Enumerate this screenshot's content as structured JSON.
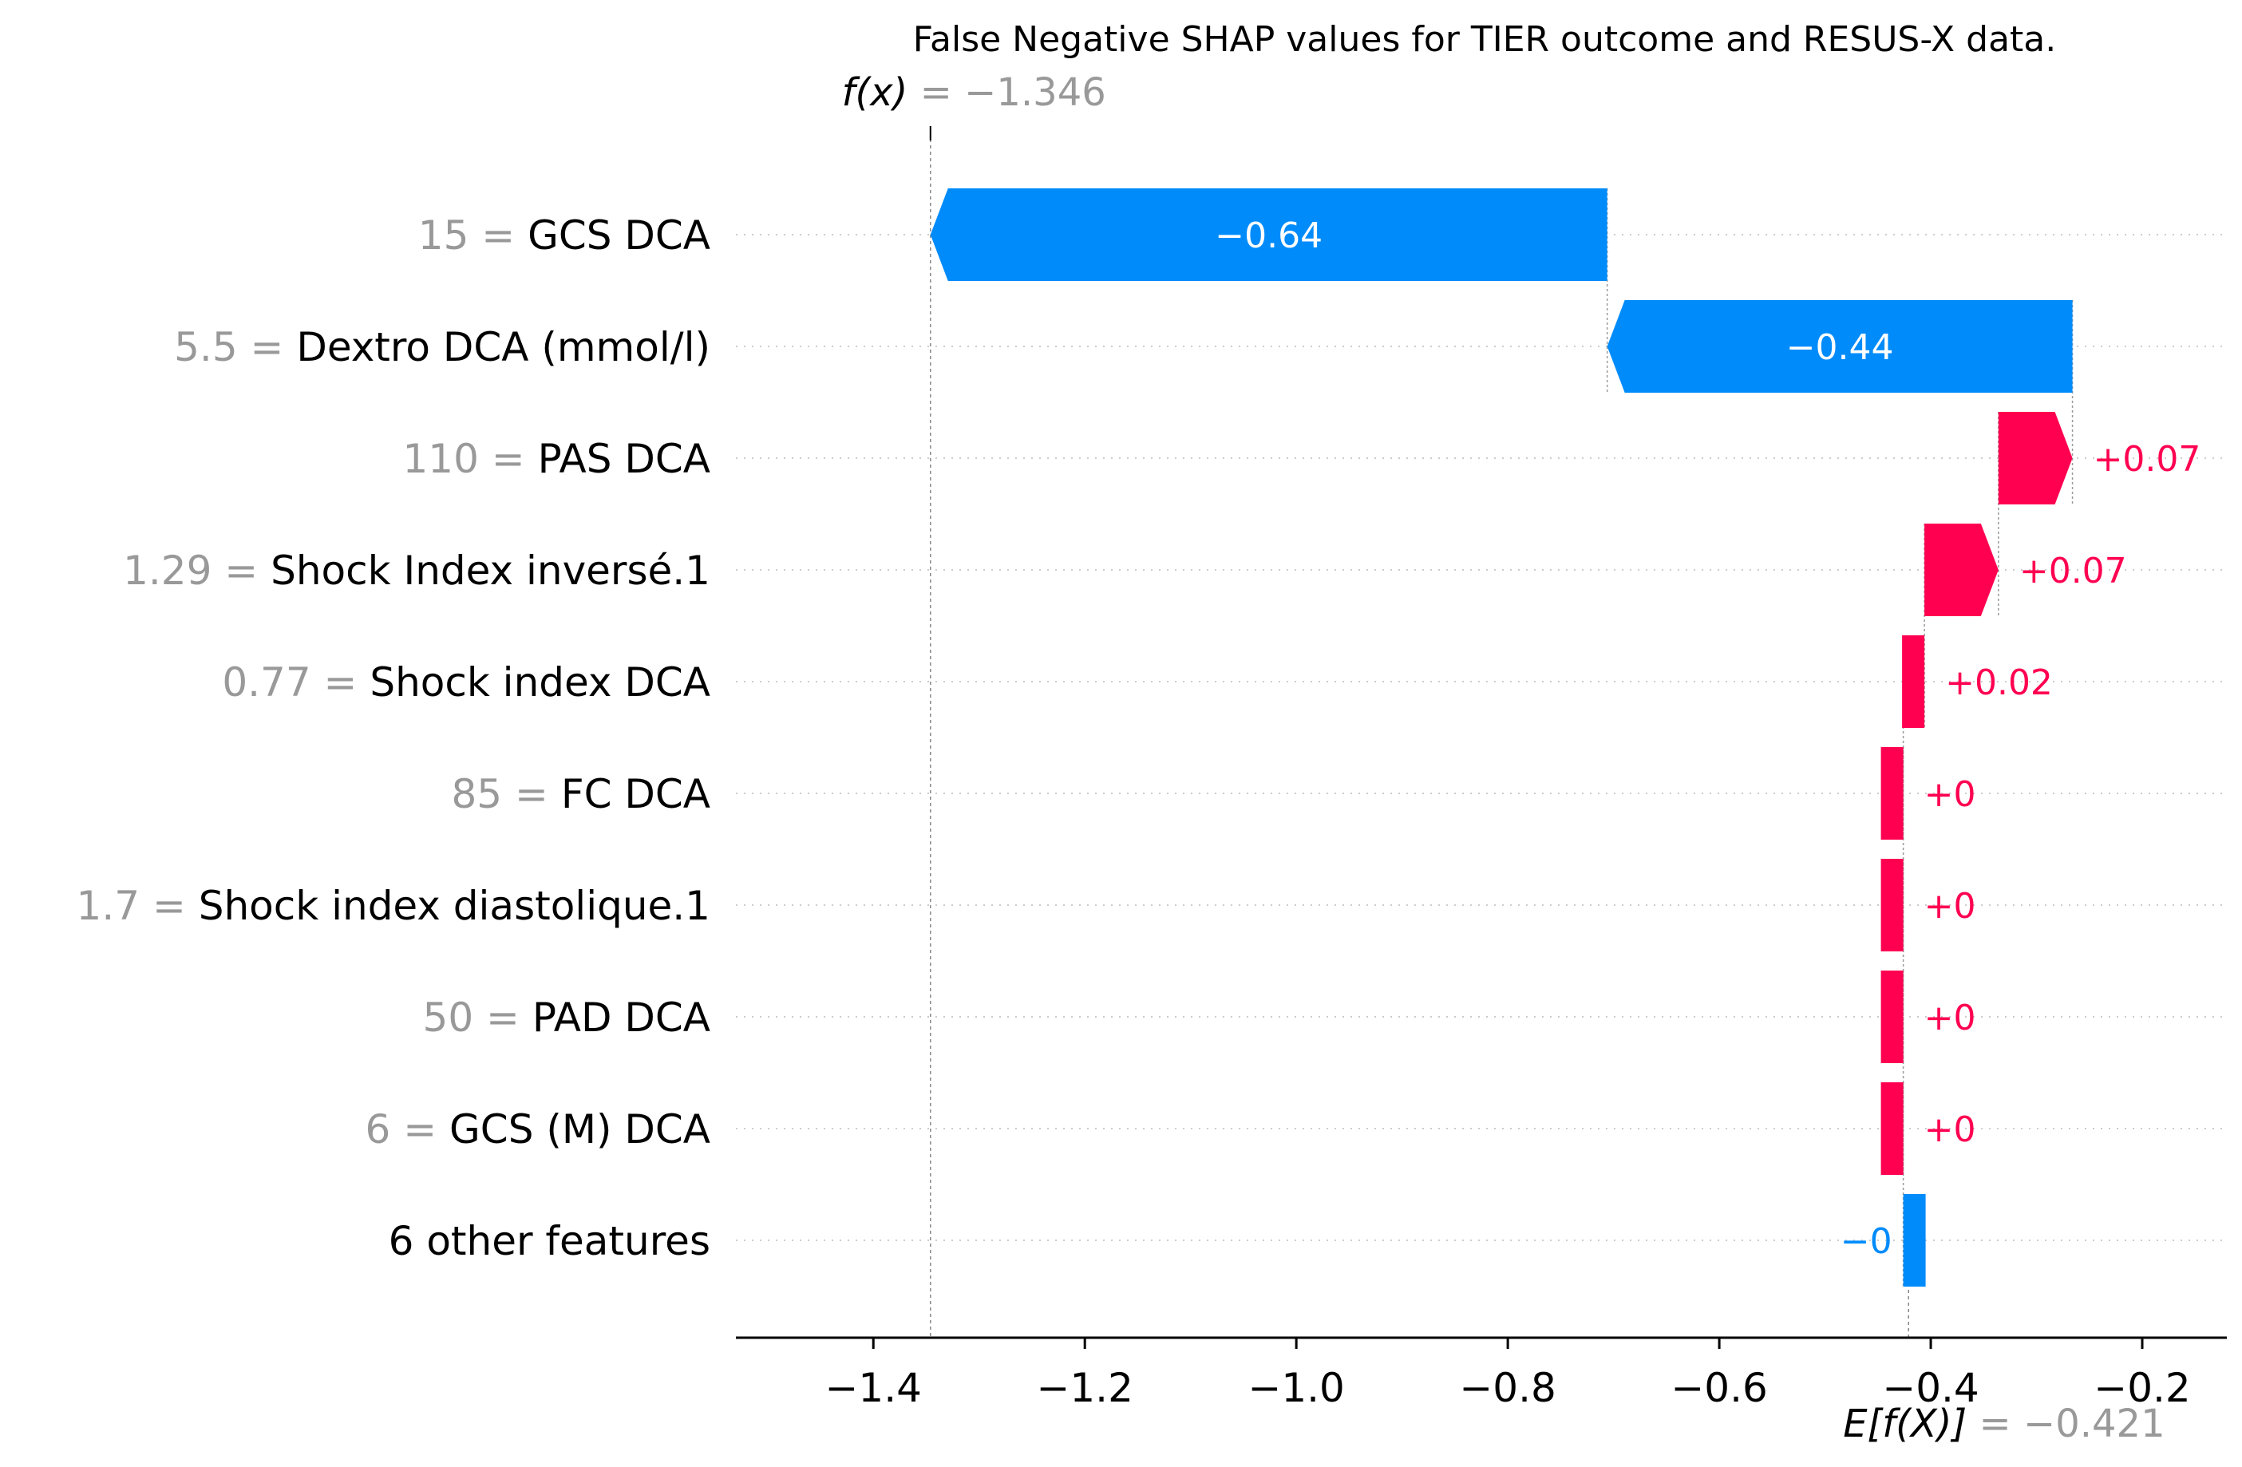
{
  "chart_data": {
    "type": "waterfall",
    "title": "False Negative SHAP values for TIER outcome and RESUS-X data.",
    "base_value": -0.421,
    "base_value_label": "E[f(X)]",
    "base_value_text": "= −0.421",
    "output_value": -1.346,
    "output_value_label": "f(x)",
    "output_value_text": "= −1.346",
    "features": [
      {
        "name": "GCS DCA",
        "feature_value": "15",
        "shap": -0.64,
        "label": "−0.64"
      },
      {
        "name": "Dextro DCA (mmol/l)",
        "feature_value": "5.5",
        "shap": -0.44,
        "label": "−0.44"
      },
      {
        "name": "PAS DCA",
        "feature_value": "110",
        "shap": 0.07,
        "label": "+0.07"
      },
      {
        "name": "Shock Index inversé.1",
        "feature_value": "1.29",
        "shap": 0.07,
        "label": "+0.07"
      },
      {
        "name": "Shock index DCA",
        "feature_value": "0.77",
        "shap": 0.02,
        "label": "+0.02"
      },
      {
        "name": "FC  DCA",
        "feature_value": "85",
        "shap": 0.0,
        "label": "+0"
      },
      {
        "name": "Shock index diastolique.1",
        "feature_value": "1.7",
        "shap": 0.0,
        "label": "+0"
      },
      {
        "name": "PAD DCA",
        "feature_value": "50",
        "shap": 0.0,
        "label": "+0"
      },
      {
        "name": "GCS (M) DCA",
        "feature_value": "6",
        "shap": 0.0,
        "label": "+0"
      },
      {
        "name": "6 other features",
        "feature_value": "",
        "shap": 0.0,
        "label": "−0",
        "direction": "negative"
      }
    ],
    "xlim": [
      -1.53,
      -0.12
    ],
    "xticks": [
      -1.4,
      -1.2,
      -1.0,
      -0.8,
      -0.6,
      -0.4,
      -0.2
    ],
    "xtick_labels": [
      "−1.4",
      "−1.2",
      "−1.0",
      "−0.8",
      "−0.6",
      "−0.4",
      "−0.2"
    ],
    "colors": {
      "negative": "#008bfb",
      "positive": "#ff0051",
      "grey_text": "#999999"
    }
  }
}
